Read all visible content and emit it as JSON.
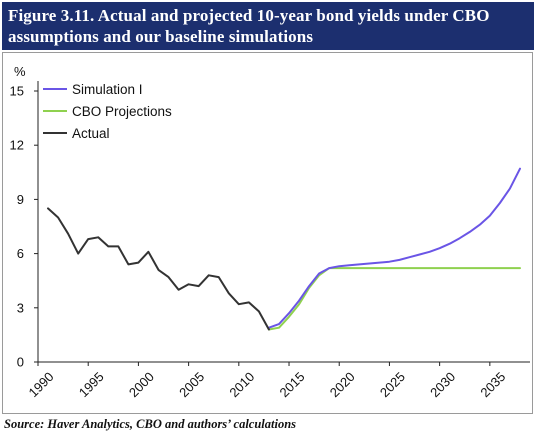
{
  "figure": {
    "title_line1": "Figure 3.11. Actual and projected 10-year bond yields under CBO",
    "title_line2": "assumptions and our baseline simulations",
    "source": "Source:  Haver Analytics, CBO and authors’ calculations"
  },
  "colors": {
    "title_bg": "#1c2f6f",
    "simulation": "#6a55e6",
    "cbo": "#8fd14f",
    "actual": "#333333"
  },
  "chart_data": {
    "type": "line",
    "ylabel": "%",
    "xlim": [
      1990,
      2039
    ],
    "ylim": [
      0,
      15
    ],
    "x_ticks": [
      1990,
      1995,
      2000,
      2005,
      2010,
      2015,
      2020,
      2025,
      2030,
      2035
    ],
    "y_ticks": [
      0,
      3,
      6,
      9,
      12,
      15
    ],
    "grid": false,
    "legend_position": "top-left",
    "series": [
      {
        "name": "Simulation I",
        "color_key": "simulation",
        "x": [
          2013,
          2014,
          2015,
          2016,
          2017,
          2018,
          2019,
          2020,
          2021,
          2022,
          2023,
          2024,
          2025,
          2026,
          2027,
          2028,
          2029,
          2030,
          2031,
          2032,
          2033,
          2034,
          2035,
          2036,
          2037,
          2038
        ],
        "y": [
          1.9,
          2.1,
          2.7,
          3.4,
          4.2,
          4.9,
          5.2,
          5.3,
          5.35,
          5.4,
          5.45,
          5.5,
          5.55,
          5.65,
          5.8,
          5.95,
          6.1,
          6.3,
          6.55,
          6.85,
          7.2,
          7.6,
          8.1,
          8.8,
          9.6,
          10.7
        ]
      },
      {
        "name": "CBO Projections",
        "color_key": "cbo",
        "x": [
          2013,
          2014,
          2015,
          2016,
          2017,
          2018,
          2019,
          2020,
          2021,
          2022,
          2023,
          2024,
          2025,
          2026,
          2027,
          2028,
          2029,
          2030,
          2031,
          2032,
          2033,
          2034,
          2035,
          2036,
          2037,
          2038
        ],
        "y": [
          1.8,
          1.9,
          2.5,
          3.2,
          4.1,
          4.8,
          5.2,
          5.2,
          5.2,
          5.2,
          5.2,
          5.2,
          5.2,
          5.2,
          5.2,
          5.2,
          5.2,
          5.2,
          5.2,
          5.2,
          5.2,
          5.2,
          5.2,
          5.2,
          5.2,
          5.2
        ]
      },
      {
        "name": "Actual",
        "color_key": "actual",
        "x": [
          1991,
          1992,
          1993,
          1994,
          1995,
          1996,
          1997,
          1998,
          1999,
          2000,
          2001,
          2002,
          2003,
          2004,
          2005,
          2006,
          2007,
          2008,
          2009,
          2010,
          2011,
          2012,
          2013
        ],
        "y": [
          8.5,
          8.0,
          7.1,
          6.0,
          6.8,
          6.9,
          6.4,
          6.4,
          5.4,
          5.5,
          6.1,
          5.1,
          4.7,
          4.0,
          4.3,
          4.2,
          4.8,
          4.7,
          3.8,
          3.2,
          3.3,
          2.8,
          1.8
        ]
      }
    ]
  }
}
